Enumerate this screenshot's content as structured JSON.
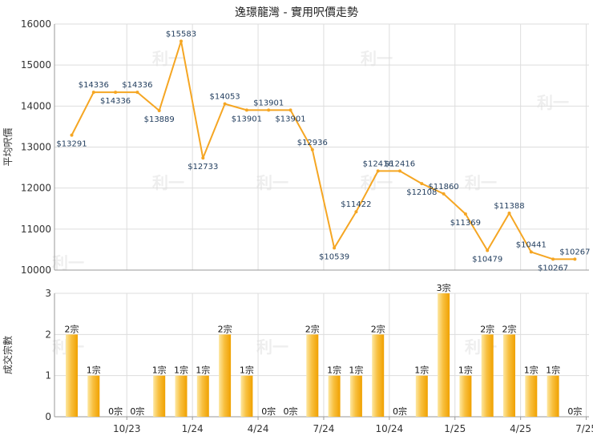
{
  "chart_data": {
    "title": "逸璟龍灣 - 實用呎價走勢",
    "watermark": "利一",
    "colors": {
      "line": "#f5a623",
      "grid": "#dddddd",
      "axis": "#333333",
      "price_label": "#1f3b5c",
      "count_label": "#111111",
      "bar_light": "#fde7a0",
      "bar_dark": "#f0a100"
    },
    "x_ticks": [
      "10/23",
      "1/24",
      "4/24",
      "7/24",
      "10/24",
      "1/25",
      "4/25",
      "7/25"
    ],
    "price_chart": {
      "type": "line",
      "ylabel": "平均呎價",
      "ylim": [
        10000,
        16000
      ],
      "yticks": [
        10000,
        11000,
        12000,
        13000,
        14000,
        15000,
        16000
      ],
      "grid": true,
      "values": [
        13291,
        14336,
        14336,
        14336,
        13889,
        15583,
        12733,
        14053,
        13901,
        13901,
        13901,
        12936,
        10539,
        11422,
        12416,
        12416,
        12108,
        11860,
        11369,
        10479,
        11388,
        10441,
        10267,
        10267
      ],
      "labels": [
        "$13291",
        "$14336",
        "$14336",
        "$14336",
        "$13889",
        "$15583",
        "$12733",
        "$14053",
        "$13901",
        "$13901",
        "$13901",
        "$12936",
        "$10539",
        "$11422",
        "$12416",
        "$12416",
        "$12108",
        "$11860",
        "$11369",
        "$10479",
        "$11388",
        "$10441",
        "$10267",
        "$10267"
      ]
    },
    "count_chart": {
      "type": "bar",
      "ylabel": "成交宗數",
      "ylim": [
        0,
        3
      ],
      "yticks": [
        0,
        1,
        2,
        3
      ],
      "grid": true,
      "values": [
        2,
        1,
        0,
        0,
        1,
        1,
        1,
        2,
        1,
        0,
        0,
        2,
        1,
        1,
        2,
        0,
        1,
        3,
        1,
        2,
        2,
        1,
        1,
        0
      ],
      "labels": [
        "2宗",
        "1宗",
        "0宗",
        "0宗",
        "1宗",
        "1宗",
        "1宗",
        "2宗",
        "1宗",
        "0宗",
        "0宗",
        "2宗",
        "1宗",
        "1宗",
        "2宗",
        "0宗",
        "1宗",
        "3宗",
        "1宗",
        "2宗",
        "2宗",
        "1宗",
        "1宗",
        "0宗"
      ]
    }
  }
}
